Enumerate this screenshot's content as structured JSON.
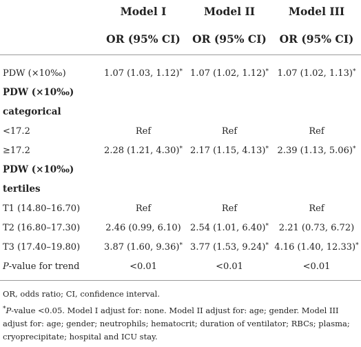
{
  "headers": {
    "models": [
      "Model I",
      "Model II",
      "Model III"
    ],
    "subheaders": [
      "OR (95% CI)",
      "OR (95% CI)",
      "OR (95% CI)"
    ]
  },
  "rows": [
    {
      "label": "PDW (×10‰)",
      "values": [
        "1.07 (1.03, 1.12)*",
        "1.07 (1.02, 1.12)*",
        "1.07 (1.02, 1.13)*"
      ]
    },
    {
      "label": "PDW (×10‰)",
      "values": [
        "",
        "",
        ""
      ]
    },
    {
      "label": "categorical",
      "values": [
        "",
        "",
        ""
      ]
    },
    {
      "label": "<17.2",
      "values": [
        "Ref",
        "Ref",
        "Ref"
      ]
    },
    {
      "label": "≥17.2",
      "values": [
        "2.28 (1.21, 4.30)*",
        "2.17 (1.15, 4.13)*",
        "2.39 (1.13, 5.06)*"
      ]
    },
    {
      "label": "PDW (×10‰)",
      "values": [
        "",
        "",
        ""
      ]
    },
    {
      "label": "tertiles",
      "values": [
        "",
        "",
        ""
      ]
    },
    {
      "label": "T1 (14.80–16.70)",
      "values": [
        "Ref",
        "Ref",
        "Ref"
      ]
    },
    {
      "label": "T2 (16.80–17.30)",
      "values": [
        "2.46 (0.99, 6.10)",
        "2.54 (1.01, 6.40)*",
        "2.21 (0.73, 6.72)"
      ]
    },
    {
      "label": "T3 (17.40–19.80)",
      "values": [
        "3.87 (1.60, 9.36)*",
        "3.77 (1.53, 9.24)*",
        "4.16 (1.40, 12.33)*"
      ]
    },
    {
      "label": "P-value for trend",
      "values": [
        "<0.01",
        "<0.01",
        "<0.01"
      ]
    }
  ],
  "notes": {
    "abbrev": "OR, odds ratio; CI, confidence interval.",
    "sig_marker": "*",
    "sig_p": "P",
    "sig_text": "-value <0.05. Model I adjust for: none. Model II adjust for: age; gender. Model III adjust for: age; gender; neutrophils; hematocrit; duration of ventilator; RBCs; plasma; cryoprecipitate; hospital and ICU stay."
  }
}
